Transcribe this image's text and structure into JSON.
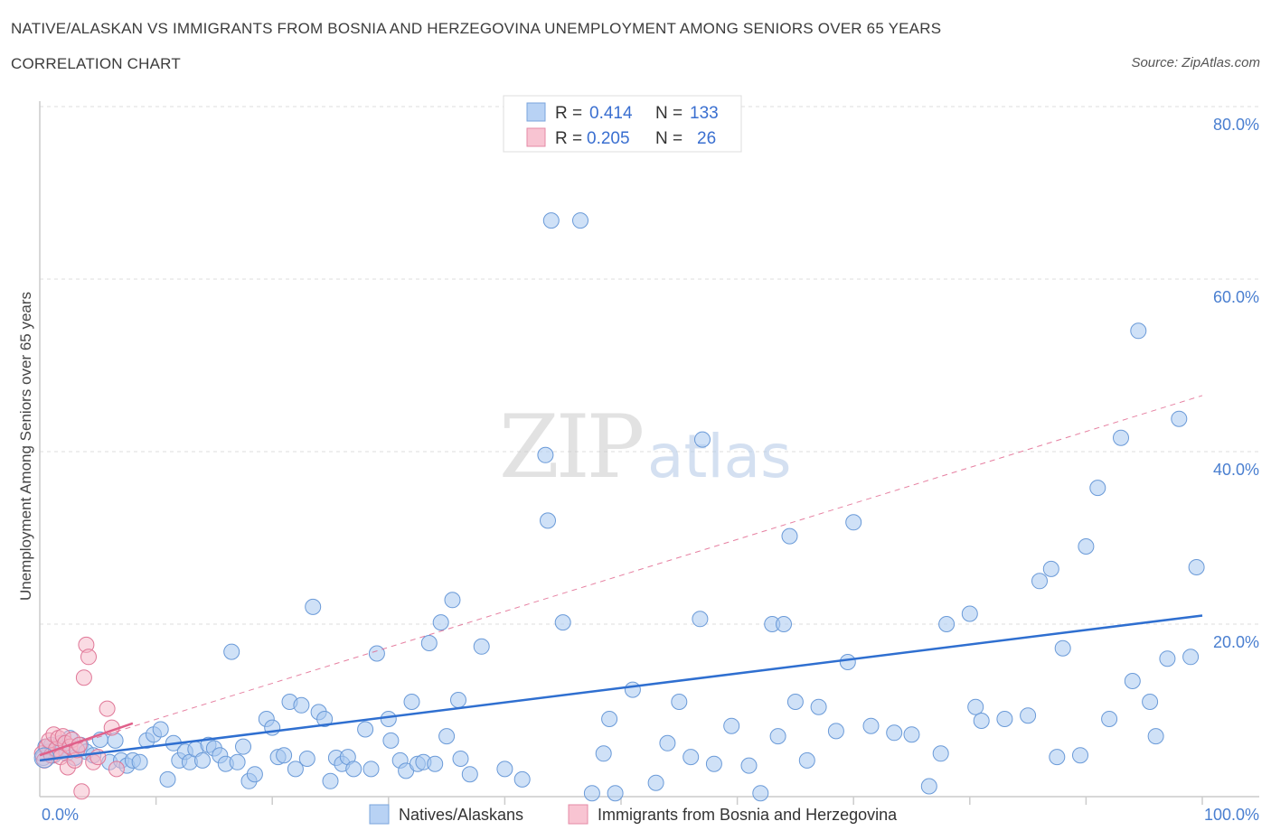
{
  "chart_data": {
    "type": "scatter",
    "title": "NATIVE/ALASKAN VS IMMIGRANTS FROM BOSNIA AND HERZEGOVINA UNEMPLOYMENT AMONG SENIORS OVER 65 YEARS",
    "subtitle": "CORRELATION CHART",
    "source": "Source: ZipAtlas.com",
    "ylabel": "Unemployment Among Seniors over 65 years",
    "xlim": [
      0,
      100
    ],
    "ylim": [
      0,
      80
    ],
    "y_ticks": [
      {
        "value": 20,
        "label": "20.0%"
      },
      {
        "value": 40,
        "label": "40.0%"
      },
      {
        "value": 60,
        "label": "60.0%"
      },
      {
        "value": 80,
        "label": "80.0%"
      }
    ],
    "x_tick_labels": {
      "left": "0.0%",
      "right": "100.0%"
    },
    "watermark": {
      "part1": "ZIP",
      "part2": "atlas"
    },
    "legend": [
      {
        "r_label": "R =",
        "r": "0.414",
        "n_label": "N =",
        "n": "133"
      },
      {
        "r_label": "R =",
        "r": "0.205",
        "n_label": "N =",
        "n": "26"
      }
    ],
    "series": [
      {
        "name": "Natives/Alaskans",
        "color": "#a8c8f0",
        "edge": "#6a9ad8",
        "line_color": "#2f6fd0",
        "trend": {
          "x0": 0,
          "y0": 4.2,
          "x1": 100,
          "y1": 21.0
        },
        "points": [
          [
            0.3,
            4.5
          ],
          [
            0.5,
            5.8
          ],
          [
            0.8,
            5.2
          ],
          [
            1.0,
            6.0
          ],
          [
            1.2,
            4.8
          ],
          [
            1.5,
            5.5
          ],
          [
            1.8,
            6.2
          ],
          [
            2.0,
            5.6
          ],
          [
            2.3,
            5.0
          ],
          [
            2.6,
            6.8
          ],
          [
            3.0,
            4.5
          ],
          [
            3.5,
            6.0
          ],
          [
            4.0,
            5.2
          ],
          [
            4.6,
            4.8
          ],
          [
            5.2,
            6.6
          ],
          [
            6.0,
            4.0
          ],
          [
            6.5,
            6.5
          ],
          [
            7.0,
            4.2
          ],
          [
            7.5,
            3.6
          ],
          [
            8.0,
            4.2
          ],
          [
            8.6,
            4.0
          ],
          [
            9.2,
            6.5
          ],
          [
            9.8,
            7.2
          ],
          [
            10.4,
            7.8
          ],
          [
            11.0,
            2.0
          ],
          [
            11.5,
            6.2
          ],
          [
            12.0,
            4.2
          ],
          [
            12.5,
            5.2
          ],
          [
            12.9,
            4.0
          ],
          [
            13.4,
            5.5
          ],
          [
            14.0,
            4.2
          ],
          [
            14.5,
            6.0
          ],
          [
            15.0,
            5.6
          ],
          [
            15.5,
            4.8
          ],
          [
            16.0,
            3.8
          ],
          [
            16.5,
            16.8
          ],
          [
            17.0,
            4.0
          ],
          [
            17.5,
            5.8
          ],
          [
            18.0,
            1.8
          ],
          [
            18.5,
            2.6
          ],
          [
            19.5,
            9.0
          ],
          [
            20.0,
            8.0
          ],
          [
            20.5,
            4.6
          ],
          [
            21.0,
            4.8
          ],
          [
            21.5,
            11.0
          ],
          [
            22.0,
            3.2
          ],
          [
            22.5,
            10.6
          ],
          [
            23.0,
            4.4
          ],
          [
            23.5,
            22.0
          ],
          [
            24.0,
            9.8
          ],
          [
            24.5,
            9.0
          ],
          [
            25.0,
            1.8
          ],
          [
            25.5,
            4.5
          ],
          [
            26.0,
            3.8
          ],
          [
            26.5,
            4.6
          ],
          [
            27.0,
            3.2
          ],
          [
            28.0,
            7.8
          ],
          [
            28.5,
            3.2
          ],
          [
            29.0,
            16.6
          ],
          [
            30.0,
            9.0
          ],
          [
            30.2,
            6.5
          ],
          [
            31.0,
            4.2
          ],
          [
            31.5,
            3.0
          ],
          [
            32.0,
            11.0
          ],
          [
            32.5,
            3.8
          ],
          [
            33.0,
            4.0
          ],
          [
            33.5,
            17.8
          ],
          [
            34.0,
            3.8
          ],
          [
            34.5,
            20.2
          ],
          [
            35.0,
            7.0
          ],
          [
            35.5,
            22.8
          ],
          [
            36.0,
            11.2
          ],
          [
            36.2,
            4.4
          ],
          [
            37.0,
            2.6
          ],
          [
            38.0,
            17.4
          ],
          [
            40.0,
            3.2
          ],
          [
            41.5,
            2.0
          ],
          [
            43.5,
            39.6
          ],
          [
            43.7,
            32.0
          ],
          [
            44.0,
            66.8
          ],
          [
            45.0,
            20.2
          ],
          [
            46.5,
            66.8
          ],
          [
            47.5,
            0.4
          ],
          [
            48.5,
            5.0
          ],
          [
            49.0,
            9.0
          ],
          [
            49.5,
            0.4
          ],
          [
            51.0,
            12.4
          ],
          [
            53.0,
            1.6
          ],
          [
            54.0,
            6.2
          ],
          [
            55.0,
            11.0
          ],
          [
            56.0,
            4.6
          ],
          [
            56.8,
            20.6
          ],
          [
            57.0,
            41.4
          ],
          [
            58.0,
            3.8
          ],
          [
            59.5,
            8.2
          ],
          [
            61.0,
            3.6
          ],
          [
            62.0,
            0.4
          ],
          [
            63.0,
            20.0
          ],
          [
            63.5,
            7.0
          ],
          [
            64.0,
            20.0
          ],
          [
            64.5,
            30.2
          ],
          [
            65.0,
            11.0
          ],
          [
            66.0,
            4.2
          ],
          [
            67.0,
            10.4
          ],
          [
            68.5,
            7.6
          ],
          [
            69.5,
            15.6
          ],
          [
            70.0,
            31.8
          ],
          [
            71.5,
            8.2
          ],
          [
            73.5,
            7.4
          ],
          [
            75.0,
            7.2
          ],
          [
            76.5,
            1.2
          ],
          [
            77.5,
            5.0
          ],
          [
            78.0,
            20.0
          ],
          [
            80.0,
            21.2
          ],
          [
            80.5,
            10.4
          ],
          [
            81.0,
            8.8
          ],
          [
            83.0,
            9.0
          ],
          [
            85.0,
            9.4
          ],
          [
            86.0,
            25.0
          ],
          [
            87.0,
            26.4
          ],
          [
            87.5,
            4.6
          ],
          [
            88.0,
            17.2
          ],
          [
            89.5,
            4.8
          ],
          [
            90.0,
            29.0
          ],
          [
            91.0,
            35.8
          ],
          [
            92.0,
            9.0
          ],
          [
            93.0,
            41.6
          ],
          [
            94.0,
            13.4
          ],
          [
            94.5,
            54.0
          ],
          [
            95.5,
            11.0
          ],
          [
            96.0,
            7.0
          ],
          [
            97.0,
            16.0
          ],
          [
            98.0,
            43.8
          ],
          [
            99.0,
            16.2
          ],
          [
            99.5,
            26.6
          ]
        ]
      },
      {
        "name": "Immigrants from Bosnia and Herzegovina",
        "color": "#f6b8c8",
        "edge": "#e07898",
        "line_color": "#e0608a",
        "trend": {
          "x0": 0,
          "y0": 4.8,
          "x1": 8,
          "y1": 8.5,
          "ext_x1": 100,
          "ext_y1": 46.5
        },
        "points": [
          [
            0.2,
            5.0
          ],
          [
            0.4,
            4.2
          ],
          [
            0.6,
            5.8
          ],
          [
            0.8,
            6.5
          ],
          [
            1.0,
            4.8
          ],
          [
            1.2,
            7.2
          ],
          [
            1.4,
            5.5
          ],
          [
            1.6,
            6.8
          ],
          [
            1.8,
            4.6
          ],
          [
            2.0,
            7.0
          ],
          [
            2.2,
            6.2
          ],
          [
            2.4,
            3.4
          ],
          [
            2.6,
            5.8
          ],
          [
            2.8,
            6.6
          ],
          [
            3.0,
            4.2
          ],
          [
            3.2,
            5.4
          ],
          [
            3.4,
            6.0
          ],
          [
            3.6,
            0.6
          ],
          [
            3.8,
            13.8
          ],
          [
            4.0,
            17.6
          ],
          [
            4.2,
            16.2
          ],
          [
            4.6,
            4.0
          ],
          [
            5.0,
            4.6
          ],
          [
            5.8,
            10.2
          ],
          [
            6.2,
            8.0
          ],
          [
            6.6,
            3.2
          ]
        ]
      }
    ]
  }
}
